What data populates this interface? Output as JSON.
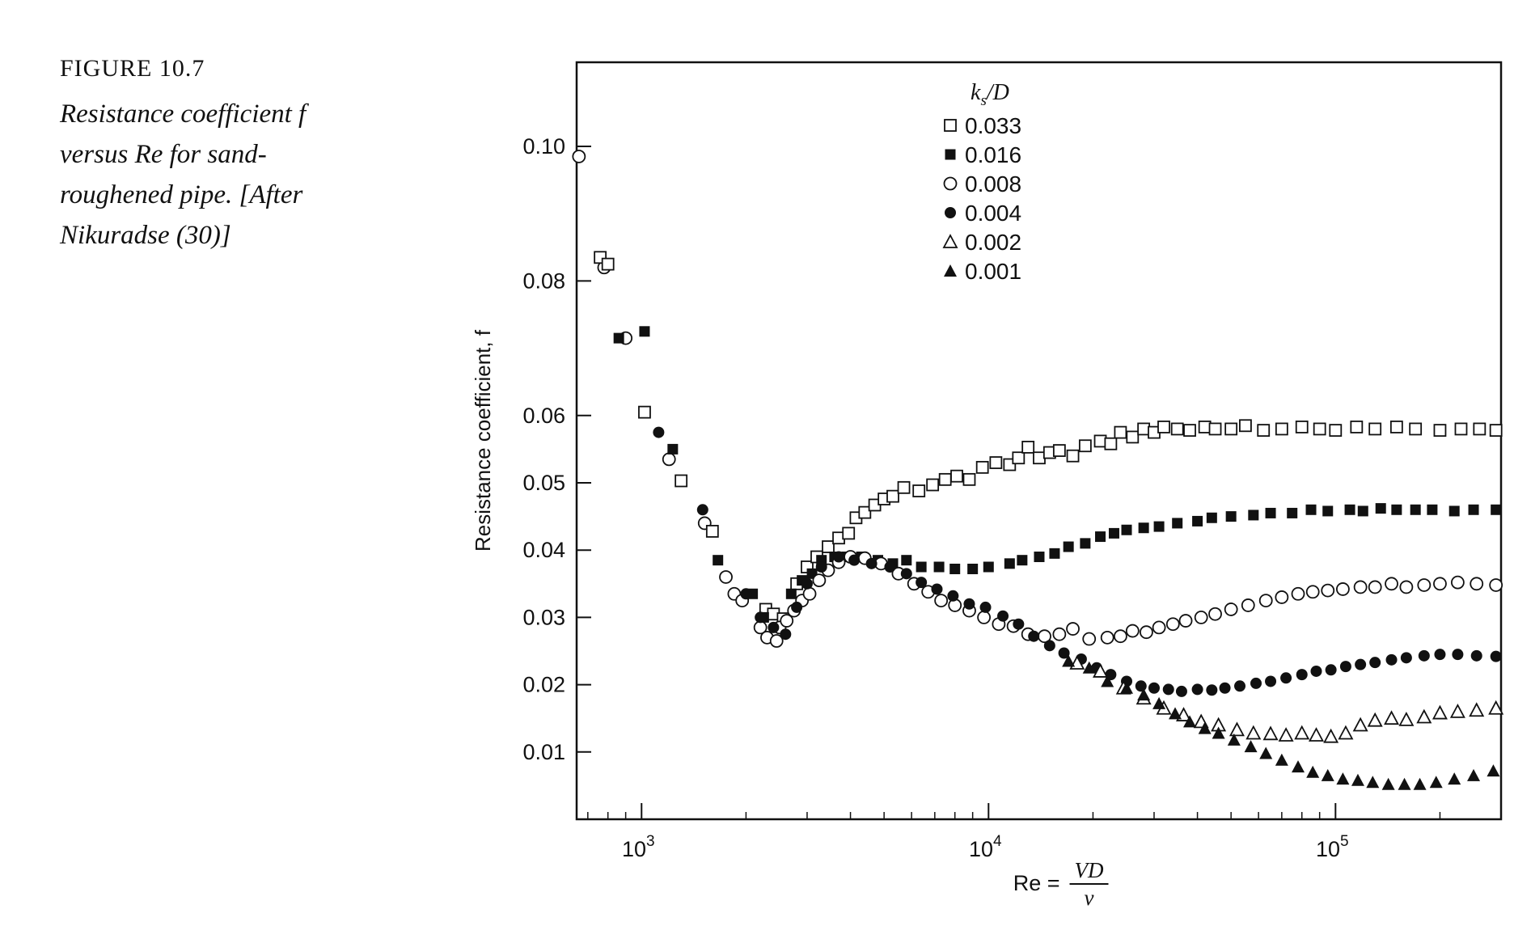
{
  "figure": {
    "label": "FIGURE 10.7",
    "caption": "Resistance coefficient f versus Re for sand-roughened pipe. [After Nikuradse (30)]"
  },
  "chart_data": {
    "type": "scatter",
    "title": "",
    "ylabel": "Resistance coefficient, f",
    "xlabel_prefix": "Re =",
    "xlabel_numerator": "VD",
    "xlabel_denominator": "ν",
    "x_scale": "log",
    "xlim": [
      650,
      300000
    ],
    "ylim": [
      0,
      0.1125
    ],
    "x_ticks": [
      {
        "value": 1000,
        "base": "10",
        "exp": "3"
      },
      {
        "value": 10000,
        "base": "10",
        "exp": "4"
      },
      {
        "value": 100000,
        "base": "10",
        "exp": "5"
      }
    ],
    "y_ticks": [
      {
        "value": 0.01,
        "label": "0.01"
      },
      {
        "value": 0.02,
        "label": "0.02"
      },
      {
        "value": 0.03,
        "label": "0.03"
      },
      {
        "value": 0.04,
        "label": "0.04"
      },
      {
        "value": 0.05,
        "label": "0.05"
      },
      {
        "value": 0.06,
        "label": "0.06"
      },
      {
        "value": 0.08,
        "label": "0.08"
      },
      {
        "value": 0.1,
        "label": "0.10"
      }
    ],
    "legend": {
      "title_main": "k",
      "title_sub": "s",
      "title_rest": "/D",
      "position": "top-center"
    },
    "grid": false,
    "laminar": {
      "marker": "circle-open",
      "points": [
        [
          660,
          0.0985
        ],
        [
          780,
          0.082
        ],
        [
          900,
          0.0715
        ],
        [
          1200,
          0.0535
        ],
        [
          1520,
          0.044
        ],
        [
          1750,
          0.036
        ],
        [
          1850,
          0.0335
        ],
        [
          1950,
          0.0325
        ],
        [
          2200,
          0.0285
        ],
        [
          2300,
          0.027
        ],
        [
          2450,
          0.0265
        ]
      ]
    },
    "series": [
      {
        "name": "0.033",
        "marker": "square-open",
        "color": "#111111",
        "points": [
          [
            760,
            0.0835
          ],
          [
            800,
            0.0825
          ],
          [
            1020,
            0.0605
          ],
          [
            1300,
            0.0503
          ],
          [
            1600,
            0.0428
          ],
          [
            2280,
            0.0312
          ],
          [
            2400,
            0.0305
          ],
          [
            2560,
            0.0298
          ],
          [
            2800,
            0.035
          ],
          [
            3000,
            0.0375
          ],
          [
            3200,
            0.039
          ],
          [
            3450,
            0.0405
          ],
          [
            3700,
            0.0418
          ],
          [
            3950,
            0.0425
          ],
          [
            4150,
            0.0448
          ],
          [
            4400,
            0.0456
          ],
          [
            4700,
            0.0467
          ],
          [
            5000,
            0.0476
          ],
          [
            5300,
            0.048
          ],
          [
            5700,
            0.0493
          ],
          [
            6300,
            0.0488
          ],
          [
            6900,
            0.0497
          ],
          [
            7500,
            0.0505
          ],
          [
            8100,
            0.051
          ],
          [
            8800,
            0.0505
          ],
          [
            9600,
            0.0523
          ],
          [
            10500,
            0.053
          ],
          [
            11500,
            0.0527
          ],
          [
            12200,
            0.0537
          ],
          [
            13000,
            0.0553
          ],
          [
            14000,
            0.0537
          ],
          [
            15000,
            0.0545
          ],
          [
            16000,
            0.0548
          ],
          [
            17500,
            0.054
          ],
          [
            19000,
            0.0555
          ],
          [
            21000,
            0.0562
          ],
          [
            22500,
            0.0558
          ],
          [
            24000,
            0.0575
          ],
          [
            26000,
            0.0568
          ],
          [
            28000,
            0.058
          ],
          [
            30000,
            0.0575
          ],
          [
            32000,
            0.0583
          ],
          [
            35000,
            0.058
          ],
          [
            38000,
            0.0578
          ],
          [
            42000,
            0.0583
          ],
          [
            45000,
            0.058
          ],
          [
            50000,
            0.058
          ],
          [
            55000,
            0.0585
          ],
          [
            62000,
            0.0578
          ],
          [
            70000,
            0.058
          ],
          [
            80000,
            0.0583
          ],
          [
            90000,
            0.058
          ],
          [
            100000,
            0.0578
          ],
          [
            115000,
            0.0583
          ],
          [
            130000,
            0.058
          ],
          [
            150000,
            0.0583
          ],
          [
            170000,
            0.058
          ],
          [
            200000,
            0.0578
          ],
          [
            230000,
            0.058
          ],
          [
            260000,
            0.058
          ],
          [
            290000,
            0.0578
          ]
        ]
      },
      {
        "name": "0.016",
        "marker": "square-filled",
        "color": "#111111",
        "points": [
          [
            860,
            0.0715
          ],
          [
            1020,
            0.0725
          ],
          [
            1230,
            0.055
          ],
          [
            1660,
            0.0385
          ],
          [
            2090,
            0.0335
          ],
          [
            2250,
            0.03
          ],
          [
            2450,
            0.0285
          ],
          [
            2700,
            0.0335
          ],
          [
            2900,
            0.0355
          ],
          [
            3100,
            0.0365
          ],
          [
            3300,
            0.0385
          ],
          [
            3600,
            0.039
          ],
          [
            3900,
            0.039
          ],
          [
            4300,
            0.039
          ],
          [
            4800,
            0.0385
          ],
          [
            5300,
            0.038
          ],
          [
            5800,
            0.0385
          ],
          [
            6400,
            0.0375
          ],
          [
            7200,
            0.0375
          ],
          [
            8000,
            0.0372
          ],
          [
            9000,
            0.0372
          ],
          [
            10000,
            0.0375
          ],
          [
            11500,
            0.038
          ],
          [
            12500,
            0.0385
          ],
          [
            14000,
            0.039
          ],
          [
            15500,
            0.0395
          ],
          [
            17000,
            0.0405
          ],
          [
            19000,
            0.041
          ],
          [
            21000,
            0.042
          ],
          [
            23000,
            0.0425
          ],
          [
            25000,
            0.043
          ],
          [
            28000,
            0.0433
          ],
          [
            31000,
            0.0435
          ],
          [
            35000,
            0.044
          ],
          [
            40000,
            0.0443
          ],
          [
            44000,
            0.0448
          ],
          [
            50000,
            0.045
          ],
          [
            58000,
            0.0452
          ],
          [
            65000,
            0.0455
          ],
          [
            75000,
            0.0455
          ],
          [
            85000,
            0.046
          ],
          [
            95000,
            0.0458
          ],
          [
            110000,
            0.046
          ],
          [
            120000,
            0.0458
          ],
          [
            135000,
            0.0462
          ],
          [
            150000,
            0.046
          ],
          [
            170000,
            0.046
          ],
          [
            190000,
            0.046
          ],
          [
            220000,
            0.0458
          ],
          [
            250000,
            0.046
          ],
          [
            290000,
            0.046
          ]
        ]
      },
      {
        "name": "0.008",
        "marker": "circle-open",
        "color": "#111111",
        "points": [
          [
            2500,
            0.0285
          ],
          [
            2620,
            0.0295
          ],
          [
            2750,
            0.031
          ],
          [
            2900,
            0.0325
          ],
          [
            3050,
            0.0335
          ],
          [
            3250,
            0.0355
          ],
          [
            3450,
            0.037
          ],
          [
            3700,
            0.0382
          ],
          [
            4000,
            0.039
          ],
          [
            4400,
            0.0388
          ],
          [
            4900,
            0.038
          ],
          [
            5500,
            0.0365
          ],
          [
            6100,
            0.035
          ],
          [
            6700,
            0.0338
          ],
          [
            7300,
            0.0325
          ],
          [
            8000,
            0.0318
          ],
          [
            8800,
            0.031
          ],
          [
            9700,
            0.03
          ],
          [
            10700,
            0.029
          ],
          [
            11800,
            0.0287
          ],
          [
            13000,
            0.0275
          ],
          [
            14500,
            0.0272
          ],
          [
            16000,
            0.0275
          ],
          [
            17500,
            0.0283
          ],
          [
            19500,
            0.0268
          ],
          [
            22000,
            0.027
          ],
          [
            24000,
            0.0272
          ],
          [
            26000,
            0.028
          ],
          [
            28500,
            0.0278
          ],
          [
            31000,
            0.0285
          ],
          [
            34000,
            0.029
          ],
          [
            37000,
            0.0295
          ],
          [
            41000,
            0.03
          ],
          [
            45000,
            0.0305
          ],
          [
            50000,
            0.0312
          ],
          [
            56000,
            0.0318
          ],
          [
            63000,
            0.0325
          ],
          [
            70000,
            0.033
          ],
          [
            78000,
            0.0335
          ],
          [
            86000,
            0.0338
          ],
          [
            95000,
            0.034
          ],
          [
            105000,
            0.0342
          ],
          [
            118000,
            0.0345
          ],
          [
            130000,
            0.0345
          ],
          [
            145000,
            0.035
          ],
          [
            160000,
            0.0345
          ],
          [
            180000,
            0.0348
          ],
          [
            200000,
            0.035
          ],
          [
            225000,
            0.0352
          ],
          [
            255000,
            0.035
          ],
          [
            290000,
            0.0348
          ]
        ]
      },
      {
        "name": "0.004",
        "marker": "circle-filled",
        "color": "#111111",
        "points": [
          [
            1120,
            0.0575
          ],
          [
            1500,
            0.046
          ],
          [
            2000,
            0.0335
          ],
          [
            2200,
            0.03
          ],
          [
            2400,
            0.0285
          ],
          [
            2600,
            0.0275
          ],
          [
            2800,
            0.0315
          ],
          [
            3000,
            0.035
          ],
          [
            3300,
            0.0375
          ],
          [
            3700,
            0.039
          ],
          [
            4100,
            0.0385
          ],
          [
            4600,
            0.038
          ],
          [
            5200,
            0.0375
          ],
          [
            5800,
            0.0365
          ],
          [
            6400,
            0.0352
          ],
          [
            7100,
            0.0342
          ],
          [
            7900,
            0.0332
          ],
          [
            8800,
            0.032
          ],
          [
            9800,
            0.0315
          ],
          [
            11000,
            0.0302
          ],
          [
            12200,
            0.029
          ],
          [
            13500,
            0.0272
          ],
          [
            15000,
            0.0258
          ],
          [
            16500,
            0.0247
          ],
          [
            18500,
            0.0238
          ],
          [
            20500,
            0.0225
          ],
          [
            22500,
            0.0215
          ],
          [
            25000,
            0.0205
          ],
          [
            27500,
            0.0198
          ],
          [
            30000,
            0.0195
          ],
          [
            33000,
            0.0193
          ],
          [
            36000,
            0.019
          ],
          [
            40000,
            0.0193
          ],
          [
            44000,
            0.0192
          ],
          [
            48000,
            0.0195
          ],
          [
            53000,
            0.0198
          ],
          [
            59000,
            0.0202
          ],
          [
            65000,
            0.0205
          ],
          [
            72000,
            0.021
          ],
          [
            80000,
            0.0215
          ],
          [
            88000,
            0.022
          ],
          [
            97000,
            0.0222
          ],
          [
            107000,
            0.0227
          ],
          [
            118000,
            0.023
          ],
          [
            130000,
            0.0233
          ],
          [
            145000,
            0.0237
          ],
          [
            160000,
            0.024
          ],
          [
            180000,
            0.0243
          ],
          [
            200000,
            0.0245
          ],
          [
            225000,
            0.0245
          ],
          [
            255000,
            0.0243
          ],
          [
            290000,
            0.0242
          ]
        ]
      },
      {
        "name": "0.002",
        "marker": "triangle-open",
        "color": "#111111",
        "points": [
          [
            18000,
            0.0232
          ],
          [
            21000,
            0.022
          ],
          [
            24500,
            0.0195
          ],
          [
            28000,
            0.018
          ],
          [
            32000,
            0.0165
          ],
          [
            36500,
            0.0155
          ],
          [
            41000,
            0.0145
          ],
          [
            46000,
            0.014
          ],
          [
            52000,
            0.0133
          ],
          [
            58000,
            0.0128
          ],
          [
            65000,
            0.0127
          ],
          [
            72000,
            0.0125
          ],
          [
            80000,
            0.0128
          ],
          [
            88000,
            0.0125
          ],
          [
            97000,
            0.0123
          ],
          [
            107000,
            0.0128
          ],
          [
            118000,
            0.014
          ],
          [
            130000,
            0.0147
          ],
          [
            145000,
            0.015
          ],
          [
            160000,
            0.0148
          ],
          [
            180000,
            0.0152
          ],
          [
            200000,
            0.0158
          ],
          [
            225000,
            0.016
          ],
          [
            255000,
            0.0162
          ],
          [
            290000,
            0.0165
          ]
        ]
      },
      {
        "name": "0.001",
        "marker": "triangle-filled",
        "color": "#111111",
        "points": [
          [
            17000,
            0.0235
          ],
          [
            19500,
            0.0225
          ],
          [
            22000,
            0.0205
          ],
          [
            25000,
            0.0195
          ],
          [
            28000,
            0.0185
          ],
          [
            31000,
            0.0172
          ],
          [
            34500,
            0.0157
          ],
          [
            38000,
            0.0145
          ],
          [
            42000,
            0.0135
          ],
          [
            46000,
            0.0128
          ],
          [
            51000,
            0.0118
          ],
          [
            57000,
            0.0108
          ],
          [
            63000,
            0.0098
          ],
          [
            70000,
            0.0088
          ],
          [
            78000,
            0.0078
          ],
          [
            86000,
            0.007
          ],
          [
            95000,
            0.0065
          ],
          [
            105000,
            0.006
          ],
          [
            116000,
            0.0058
          ],
          [
            128000,
            0.0055
          ],
          [
            142000,
            0.0052
          ],
          [
            158000,
            0.0052
          ],
          [
            175000,
            0.0052
          ],
          [
            195000,
            0.0055
          ],
          [
            220000,
            0.006
          ],
          [
            250000,
            0.0065
          ],
          [
            285000,
            0.0072
          ]
        ]
      }
    ]
  }
}
